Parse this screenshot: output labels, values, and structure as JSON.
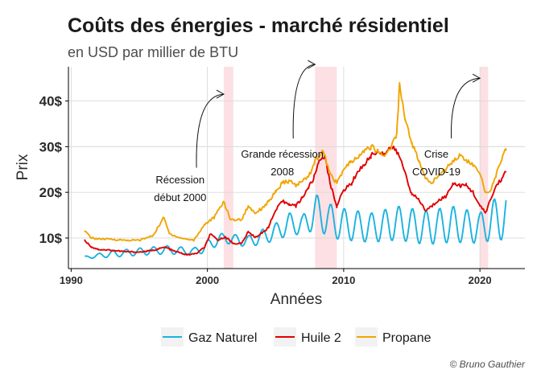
{
  "chart_data": {
    "type": "line",
    "title": "Coûts des énergies - marché résidentiel",
    "subtitle": "en USD par millier de BTU",
    "xlabel": "Années",
    "ylabel": "Prix",
    "xlim": [
      1989.8,
      2023.3
    ],
    "ylim": [
      3.3,
      47.5
    ],
    "x_ticks": [
      1990,
      2000,
      2010,
      2020
    ],
    "x_tick_labels": [
      "1990",
      "2000",
      "2010",
      "2020"
    ],
    "y_ticks": [
      10,
      20,
      30,
      40
    ],
    "y_tick_labels": [
      "10$",
      "20$",
      "30$",
      "40$"
    ],
    "grid": true,
    "legend_position": "bottom",
    "recessions": [
      {
        "start": 2001.2,
        "end": 2001.9
      },
      {
        "start": 2007.9,
        "end": 2009.5
      },
      {
        "start": 2020.0,
        "end": 2020.6
      }
    ],
    "annotations": [
      {
        "lines": [
          "Récession",
          "début 2000"
        ],
        "x": 1998.0,
        "y": 22.0
      },
      {
        "lines": [
          "Grande récession",
          "2008"
        ],
        "x": 2005.5,
        "y": 27.6
      },
      {
        "lines": [
          "Crise",
          "COVID-19"
        ],
        "x": 2016.8,
        "y": 27.6
      }
    ],
    "arrows": [
      {
        "from": [
          1999.2,
          25.4
        ],
        "to": [
          2001.2,
          41.5
        ]
      },
      {
        "from": [
          2006.3,
          31.8
        ],
        "to": [
          2007.9,
          48.0
        ]
      },
      {
        "from": [
          2017.9,
          31.8
        ],
        "to": [
          2020.0,
          45.0
        ]
      }
    ],
    "series": [
      {
        "name": "Gaz Naturel",
        "color": "#1ab3e0",
        "kind": "seasonal",
        "x": [
          1991,
          1993,
          1995,
          1997,
          1999,
          2000,
          2001,
          2003,
          2004.5,
          2005.5,
          2006,
          2007,
          2008,
          2009,
          2010,
          2012,
          2014,
          2016,
          2018,
          2020,
          2021,
          2021.9
        ],
        "troughs": [
          5.5,
          5.8,
          6.2,
          6.5,
          6.3,
          6.8,
          9.0,
          8.0,
          9.0,
          10.0,
          11.0,
          10.5,
          12.0,
          10.0,
          9.5,
          9.0,
          9.5,
          8.5,
          9.0,
          8.8,
          9.5,
          9.5
        ],
        "peaks": [
          6.0,
          7.2,
          7.8,
          8.3,
          7.8,
          9.5,
          11.0,
          10.5,
          12.5,
          14.0,
          15.5,
          15.0,
          19.5,
          17.5,
          16.5,
          15.5,
          17.0,
          16.0,
          17.0,
          15.5,
          18.5,
          20.0
        ]
      },
      {
        "name": "Huile 2",
        "color": "#e00000",
        "kind": "line",
        "x": [
          1991,
          1991.5,
          1992,
          1993,
          1994,
          1995,
          1996,
          1996.9,
          1997.5,
          1998.5,
          1999.2,
          1999.8,
          2000.2,
          2000.8,
          2001.3,
          2001.9,
          2002.5,
          2003,
          2003.5,
          2004,
          2004.5,
          2005,
          2005.5,
          2006,
          2006.5,
          2007,
          2007.4,
          2007.8,
          2008.2,
          2008.6,
          2009,
          2009.5,
          2010,
          2010.6,
          2011,
          2011.5,
          2012,
          2012.5,
          2013,
          2013.5,
          2014,
          2014.5,
          2015,
          2015.5,
          2016,
          2016.5,
          2017,
          2017.5,
          2018,
          2018.5,
          2019,
          2019.5,
          2020,
          2020.4,
          2020.8,
          2021.2,
          2021.6,
          2021.9
        ],
        "y": [
          9.5,
          8.0,
          7.5,
          7.3,
          7.0,
          6.9,
          7.3,
          8.0,
          7.2,
          6.3,
          6.6,
          8.0,
          10.8,
          9.5,
          10.3,
          8.8,
          8.8,
          11.3,
          10.2,
          11.0,
          12.5,
          16.0,
          18.0,
          17.5,
          17.0,
          19.0,
          21.0,
          23.0,
          27.0,
          28.0,
          22.0,
          17.0,
          20.5,
          22.0,
          24.5,
          26.0,
          28.0,
          29.0,
          28.5,
          30.0,
          28.5,
          24.5,
          19.5,
          18.5,
          16.0,
          17.0,
          18.5,
          19.0,
          22.0,
          21.5,
          21.5,
          20.0,
          17.0,
          15.5,
          18.5,
          21.5,
          23.0,
          24.5
        ]
      },
      {
        "name": "Propane",
        "color": "#f0a500",
        "kind": "line",
        "x": [
          1991,
          1991.5,
          1992,
          1993,
          1994,
          1995,
          1996,
          1996.8,
          1997.2,
          1998,
          1999,
          1999.8,
          2000.5,
          2001.2,
          2001.7,
          2002.5,
          2003,
          2003.5,
          2004,
          2004.5,
          2005,
          2005.5,
          2006,
          2006.5,
          2007,
          2007.5,
          2008,
          2008.5,
          2009,
          2009.5,
          2010,
          2010.5,
          2011,
          2011.5,
          2012,
          2012.5,
          2013,
          2013.5,
          2013.9,
          2014.1,
          2014.5,
          2015,
          2015.5,
          2016,
          2016.5,
          2017,
          2017.5,
          2018,
          2018.5,
          2019,
          2019.5,
          2020,
          2020.4,
          2020.8,
          2021.2,
          2021.6,
          2021.9
        ],
        "y": [
          11.5,
          10.0,
          9.8,
          9.7,
          9.5,
          9.5,
          10.5,
          14.5,
          11.0,
          10.0,
          9.5,
          13.0,
          14.5,
          18.0,
          14.0,
          14.0,
          17.0,
          15.5,
          16.5,
          18.0,
          20.0,
          22.0,
          22.5,
          21.5,
          22.5,
          24.0,
          27.5,
          29.0,
          24.0,
          22.0,
          25.0,
          26.5,
          27.5,
          29.0,
          30.0,
          29.0,
          28.0,
          30.0,
          33.0,
          44.0,
          36.0,
          31.0,
          27.0,
          23.0,
          22.0,
          24.0,
          25.0,
          27.0,
          28.0,
          27.0,
          26.0,
          24.0,
          20.0,
          20.5,
          24.0,
          27.0,
          29.5
        ]
      }
    ],
    "caption": "© Bruno Gauthier"
  }
}
